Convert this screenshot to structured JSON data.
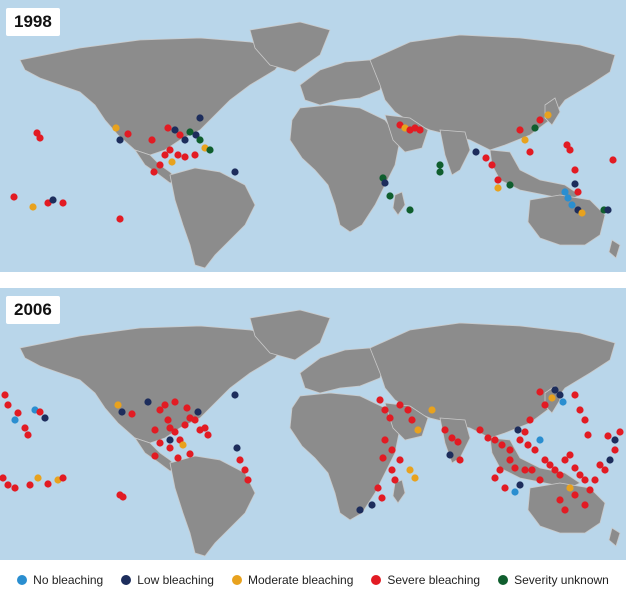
{
  "maps": [
    {
      "year": "1998"
    },
    {
      "year": "2006"
    }
  ],
  "legend": [
    {
      "label": "No bleaching",
      "color": "#2a8ed0"
    },
    {
      "label": "Low bleaching",
      "color": "#1d2d5c"
    },
    {
      "label": "Moderate bleaching",
      "color": "#e8a21e"
    },
    {
      "label": "Severe bleaching",
      "color": "#e21b23"
    },
    {
      "label": "Severity unknown",
      "color": "#0f5e2e"
    }
  ]
}
